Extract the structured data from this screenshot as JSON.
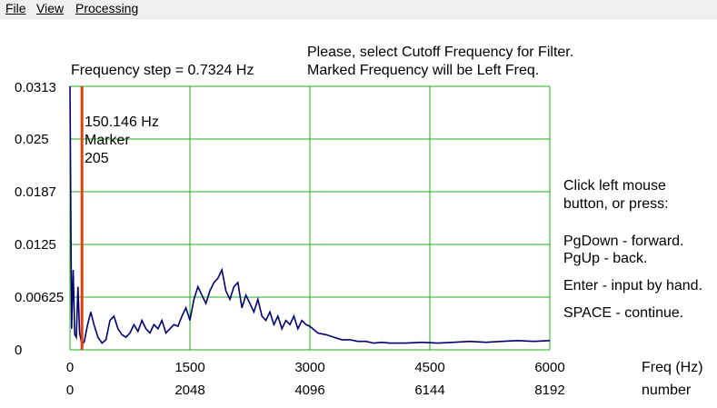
{
  "menu": {
    "file": "File",
    "view": "View",
    "processing": "Processing"
  },
  "instructions": {
    "line1": "Please, select Cutoff Frequency for Filter.",
    "line2": "Marked Frequency will be Left Freq."
  },
  "frequency_step": "Frequency step =  0.7324  Hz",
  "marker": {
    "frequency_label": "150.146  Hz",
    "title": "Marker",
    "index": "205",
    "frequency_hz": 150.146
  },
  "help": {
    "line1": "Click left mouse",
    "line2": "button, or press:",
    "line3": "PgDown  -  forward.",
    "line4": "PgUp   -   back.",
    "line5": "Enter - input by hand.",
    "line6": "SPACE - continue."
  },
  "colors": {
    "grid": "#1cb11c",
    "spectrum": "#00006e",
    "marker": "#e04010"
  },
  "chart_data": {
    "type": "line",
    "title": "",
    "xlabel": "Freq (Hz)",
    "x2label": "number",
    "ylabel": "",
    "xlim": [
      0,
      6000
    ],
    "ylim": [
      0,
      0.0313
    ],
    "yticks": [
      "0.0313",
      "0.025",
      "0.0187",
      "0.0125",
      "0.00625",
      "0"
    ],
    "xticks_hz": [
      "0",
      "1500",
      "3000",
      "4500",
      "6000"
    ],
    "xticks_number": [
      "0",
      "2048",
      "4096",
      "6144",
      "8192"
    ],
    "grid": true,
    "marker_x": 150.146,
    "series": [
      {
        "x": [
          0,
          20,
          40,
          60,
          80,
          100,
          120,
          150,
          180,
          220,
          260,
          300,
          350,
          400,
          450,
          500,
          550,
          600,
          650,
          700,
          750,
          800,
          850,
          900,
          950,
          1000,
          1050,
          1100,
          1150,
          1200,
          1250,
          1300,
          1350,
          1400,
          1450,
          1500,
          1550,
          1600,
          1650,
          1700,
          1750,
          1800,
          1850,
          1900,
          1950,
          2000,
          2050,
          2100,
          2150,
          2200,
          2250,
          2300,
          2350,
          2400,
          2450,
          2500,
          2550,
          2600,
          2650,
          2700,
          2750,
          2800,
          2850,
          2900,
          2950,
          3000,
          3100,
          3200,
          3300,
          3400,
          3500,
          3600,
          3700,
          3800,
          3900,
          4000,
          4200,
          4400,
          4600,
          4800,
          5000,
          5200,
          5400,
          5600,
          5800,
          6000
        ],
        "values": [
          0.0313,
          0.0025,
          0.0095,
          0.0018,
          0.0015,
          0.0075,
          0.002,
          0.0006,
          0.001,
          0.003,
          0.0045,
          0.003,
          0.0015,
          0.0008,
          0.0012,
          0.0035,
          0.004,
          0.0025,
          0.0018,
          0.0015,
          0.002,
          0.003,
          0.0022,
          0.0035,
          0.0025,
          0.002,
          0.003,
          0.0025,
          0.0035,
          0.002,
          0.0025,
          0.003,
          0.0028,
          0.004,
          0.005,
          0.0035,
          0.006,
          0.0075,
          0.0065,
          0.0055,
          0.007,
          0.008,
          0.0085,
          0.0095,
          0.007,
          0.006,
          0.0075,
          0.008,
          0.005,
          0.0065,
          0.0055,
          0.0045,
          0.006,
          0.004,
          0.0035,
          0.0045,
          0.003,
          0.004,
          0.0025,
          0.0035,
          0.003,
          0.004,
          0.0025,
          0.0035,
          0.003,
          0.0028,
          0.002,
          0.0018,
          0.0015,
          0.0012,
          0.0012,
          0.001,
          0.001,
          0.0008,
          0.0009,
          0.0008,
          0.0008,
          0.0009,
          0.0008,
          0.0009,
          0.001,
          0.0009,
          0.001,
          0.0011,
          0.001,
          0.0011
        ]
      }
    ]
  }
}
